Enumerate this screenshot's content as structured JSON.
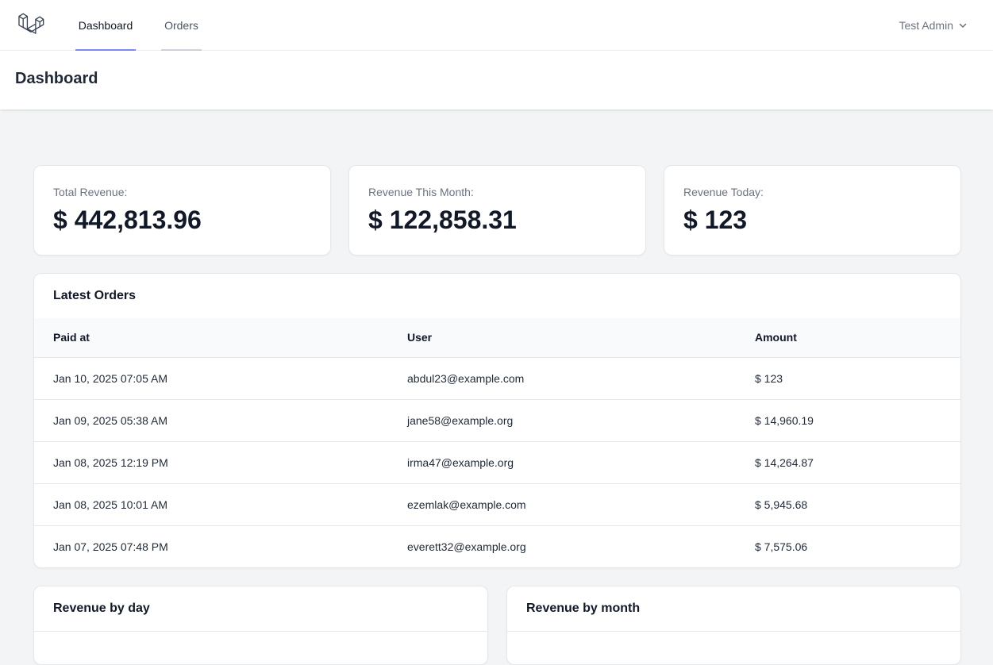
{
  "nav": {
    "links": [
      {
        "label": "Dashboard",
        "active": true
      },
      {
        "label": "Orders",
        "active": false
      }
    ],
    "user_name": "Test Admin"
  },
  "header": {
    "title": "Dashboard"
  },
  "stats": [
    {
      "label": "Total Revenue:",
      "value": "$ 442,813.96"
    },
    {
      "label": "Revenue This Month:",
      "value": "$ 122,858.31"
    },
    {
      "label": "Revenue Today:",
      "value": "$ 123"
    }
  ],
  "latest_orders": {
    "title": "Latest Orders",
    "columns": [
      "Paid at",
      "User",
      "Amount"
    ],
    "rows": [
      [
        "Jan 10, 2025 07:05 AM",
        "abdul23@example.com",
        "$ 123"
      ],
      [
        "Jan 09, 2025 05:38 AM",
        "jane58@example.org",
        "$ 14,960.19"
      ],
      [
        "Jan 08, 2025 12:19 PM",
        "irma47@example.org",
        "$ 14,264.87"
      ],
      [
        "Jan 08, 2025 10:01 AM",
        "ezemlak@example.com",
        "$ 5,945.68"
      ],
      [
        "Jan 07, 2025 07:48 PM",
        "everett32@example.org",
        "$ 7,575.06"
      ]
    ]
  },
  "revenue_by_day": {
    "title": "Revenue by day"
  },
  "revenue_by_month": {
    "title": "Revenue by month"
  },
  "colors": {
    "accent": "#818cf8",
    "background": "#f3f4f6"
  }
}
